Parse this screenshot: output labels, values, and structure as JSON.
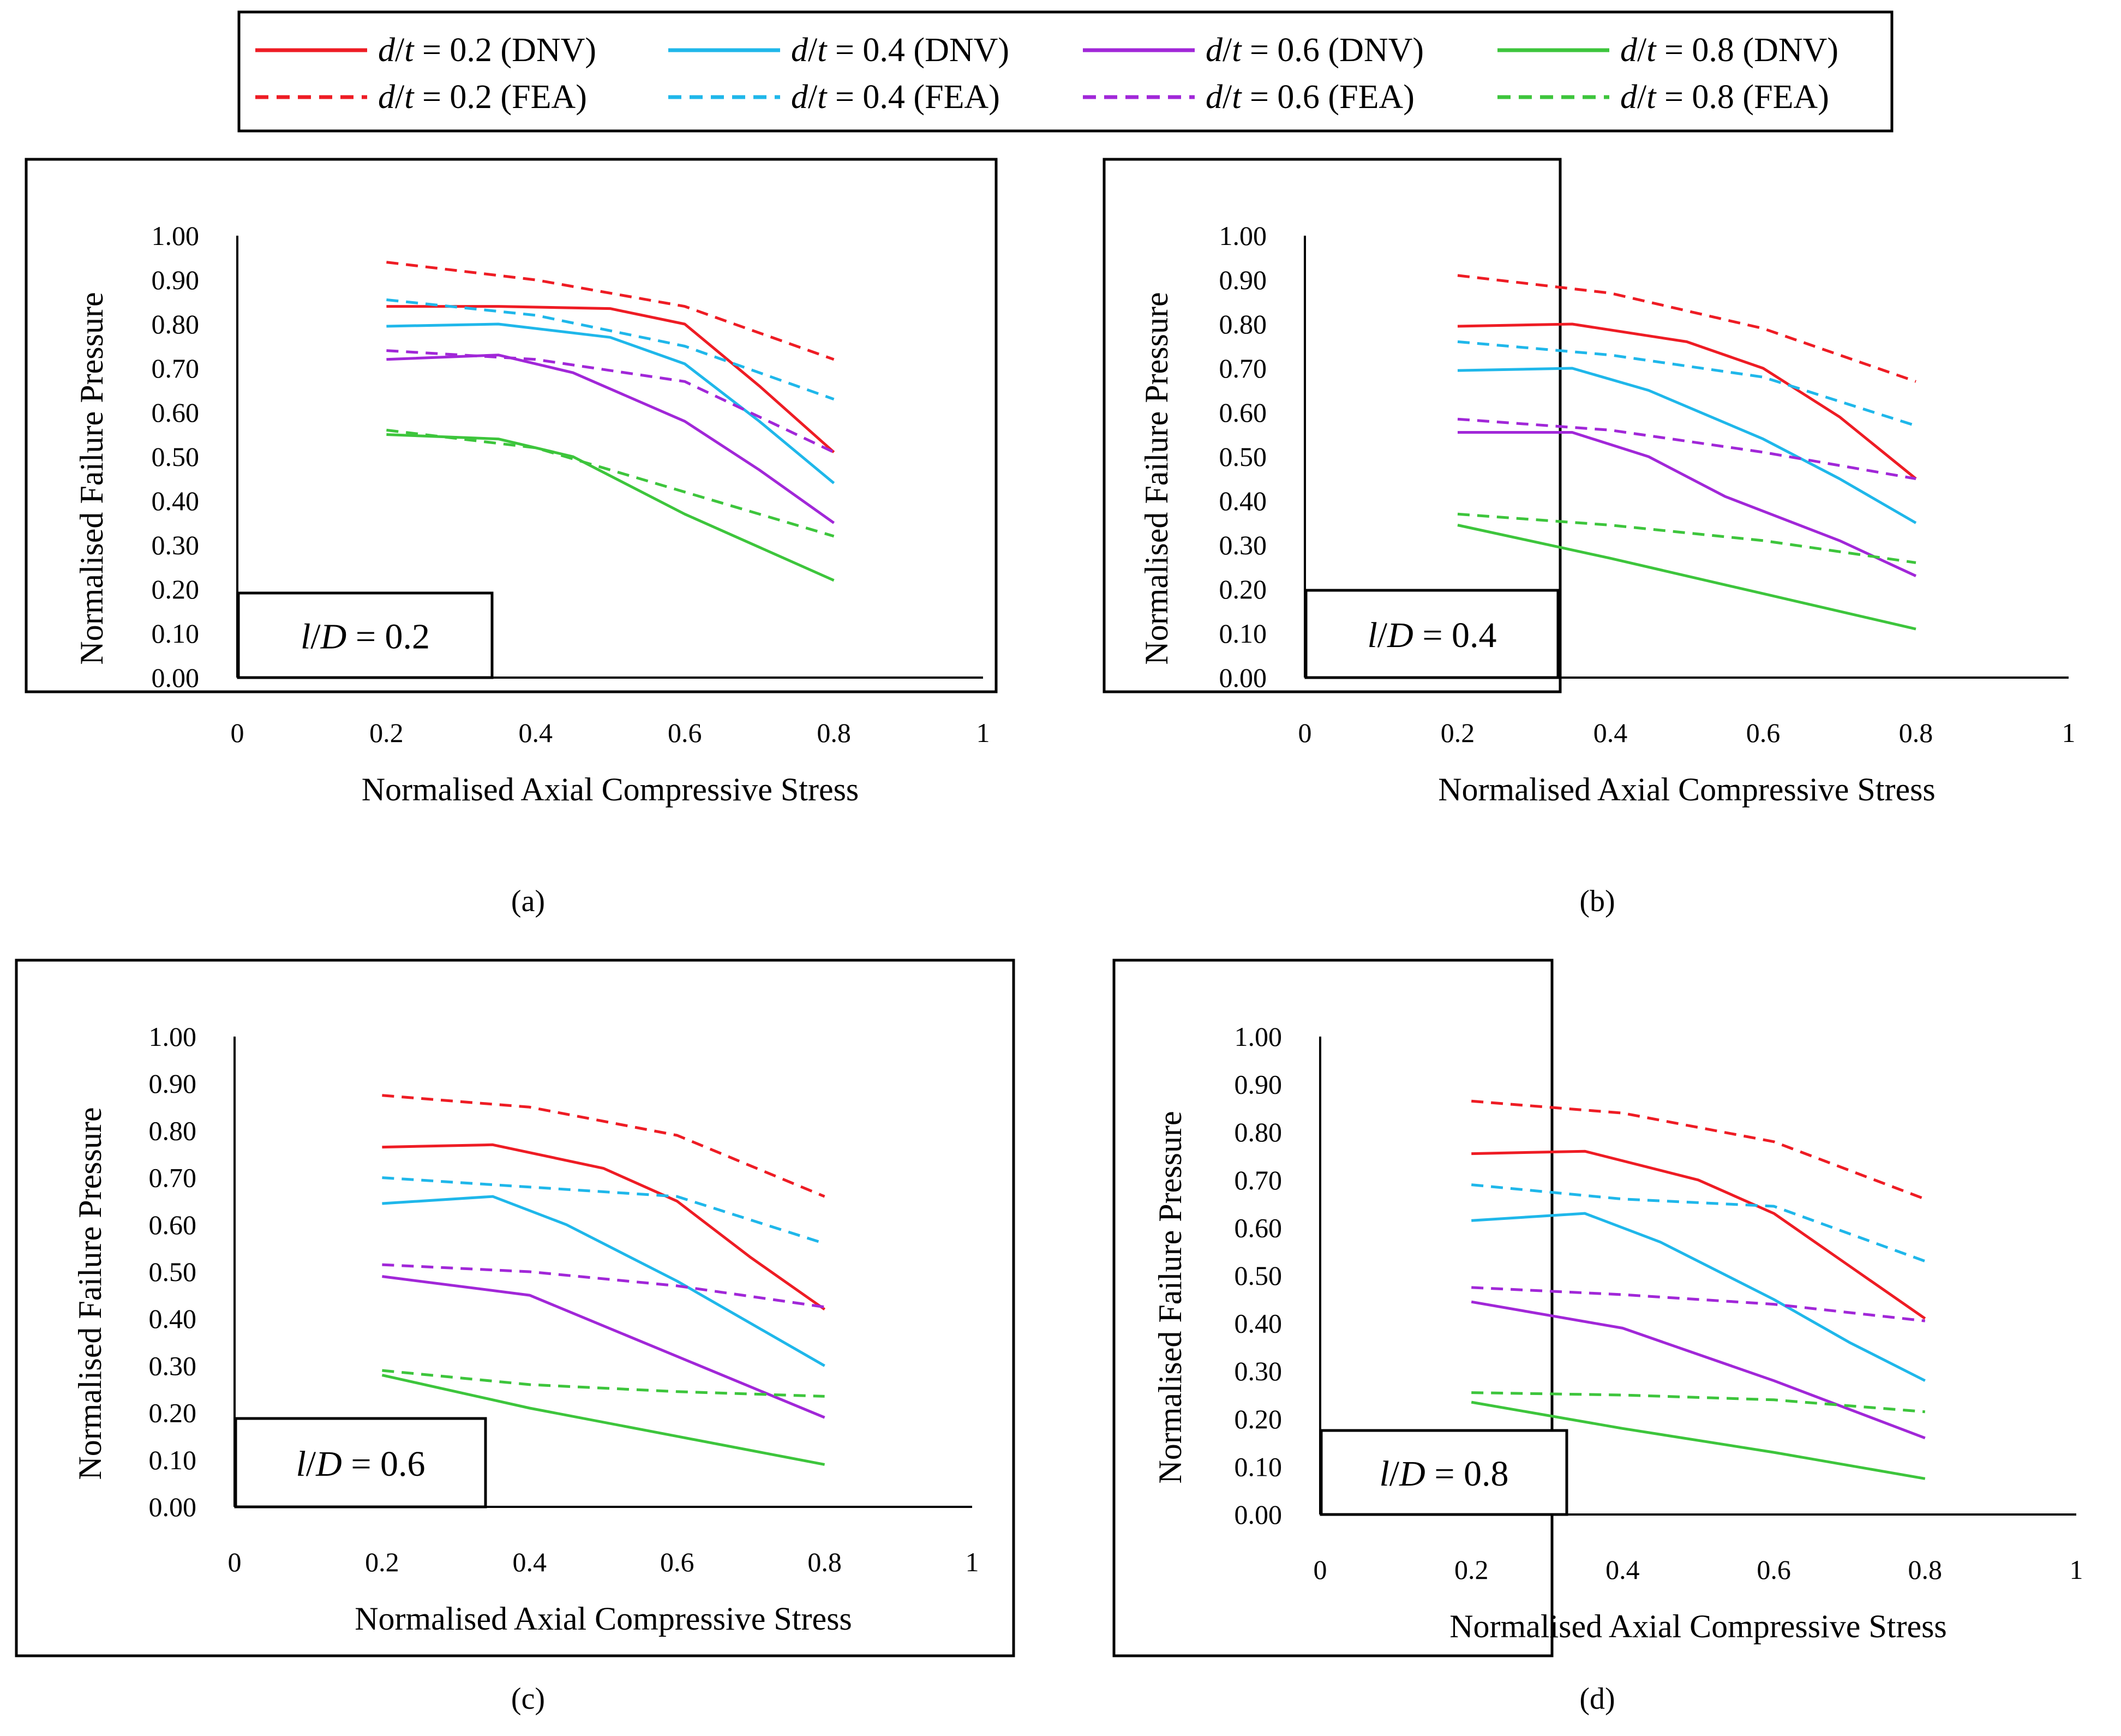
{
  "colors": {
    "red": "#ee1c24",
    "blue": "#1fb7ea",
    "purple": "#a127d8",
    "green": "#3dc53c"
  },
  "legend": {
    "var": "d/t",
    "items": [
      {
        "val": "0.2",
        "method": "(DNV)",
        "color": "#ee1c24",
        "dash": false
      },
      {
        "val": "0.4",
        "method": "(DNV)",
        "color": "#1fb7ea",
        "dash": false
      },
      {
        "val": "0.6",
        "method": "(DNV)",
        "color": "#a127d8",
        "dash": false
      },
      {
        "val": "0.8",
        "method": "(DNV)",
        "color": "#3dc53c",
        "dash": false
      },
      {
        "val": "0.2",
        "method": "(FEA)",
        "color": "#ee1c24",
        "dash": true
      },
      {
        "val": "0.4",
        "method": "(FEA)",
        "color": "#1fb7ea",
        "dash": true
      },
      {
        "val": "0.6",
        "method": "(FEA)",
        "color": "#a127d8",
        "dash": true
      },
      {
        "val": "0.8",
        "method": "(FEA)",
        "color": "#3dc53c",
        "dash": true
      }
    ]
  },
  "chart_data": [
    {
      "type": "line",
      "panel": "(a)",
      "box_var": "l/D",
      "box_value": "0.2",
      "xlabel": "Normalised Axial Compressive Stress",
      "ylabel": "Normalised Failure Pressure",
      "xlim": [
        0,
        1
      ],
      "ylim": [
        0,
        1
      ],
      "xticks": [
        "0",
        "0.2",
        "0.4",
        "0.6",
        "0.8",
        "1"
      ],
      "yticks": [
        "0.00",
        "0.10",
        "0.20",
        "0.30",
        "0.40",
        "0.50",
        "0.60",
        "0.70",
        "0.80",
        "0.90",
        "1.00"
      ],
      "series": [
        {
          "name": "d/t = 0.2 (DNV)",
          "color": "#ee1c24",
          "dash": false,
          "x": [
            0.2,
            0.35,
            0.5,
            0.6,
            0.7,
            0.8
          ],
          "y": [
            0.84,
            0.84,
            0.835,
            0.8,
            0.66,
            0.51
          ]
        },
        {
          "name": "d/t = 0.4 (DNV)",
          "color": "#1fb7ea",
          "dash": false,
          "x": [
            0.2,
            0.35,
            0.5,
            0.6,
            0.7,
            0.8
          ],
          "y": [
            0.795,
            0.8,
            0.77,
            0.71,
            0.58,
            0.44
          ]
        },
        {
          "name": "d/t = 0.6 (DNV)",
          "color": "#a127d8",
          "dash": false,
          "x": [
            0.2,
            0.35,
            0.45,
            0.6,
            0.7,
            0.8
          ],
          "y": [
            0.72,
            0.73,
            0.69,
            0.58,
            0.47,
            0.35
          ]
        },
        {
          "name": "d/t = 0.8 (DNV)",
          "color": "#3dc53c",
          "dash": false,
          "x": [
            0.2,
            0.35,
            0.45,
            0.6,
            0.8
          ],
          "y": [
            0.55,
            0.54,
            0.5,
            0.37,
            0.22
          ]
        },
        {
          "name": "d/t = 0.2 (FEA)",
          "color": "#ee1c24",
          "dash": true,
          "x": [
            0.2,
            0.4,
            0.6,
            0.8
          ],
          "y": [
            0.94,
            0.9,
            0.84,
            0.72
          ]
        },
        {
          "name": "d/t = 0.4 (FEA)",
          "color": "#1fb7ea",
          "dash": true,
          "x": [
            0.2,
            0.4,
            0.6,
            0.8
          ],
          "y": [
            0.855,
            0.82,
            0.75,
            0.63
          ]
        },
        {
          "name": "d/t = 0.6 (FEA)",
          "color": "#a127d8",
          "dash": true,
          "x": [
            0.2,
            0.4,
            0.6,
            0.8
          ],
          "y": [
            0.74,
            0.72,
            0.67,
            0.51
          ]
        },
        {
          "name": "d/t = 0.8 (FEA)",
          "color": "#3dc53c",
          "dash": true,
          "x": [
            0.2,
            0.4,
            0.6,
            0.8
          ],
          "y": [
            0.56,
            0.52,
            0.42,
            0.32
          ]
        }
      ]
    },
    {
      "type": "line",
      "panel": "(b)",
      "box_var": "l/D",
      "box_value": "0.4",
      "xlabel": "Normalised Axial Compressive Stress",
      "ylabel": "Normalised Failure Pressure",
      "xlim": [
        0,
        1
      ],
      "ylim": [
        0,
        1
      ],
      "xticks": [
        "0",
        "0.2",
        "0.4",
        "0.6",
        "0.8",
        "1"
      ],
      "yticks": [
        "0.00",
        "0.10",
        "0.20",
        "0.30",
        "0.40",
        "0.50",
        "0.60",
        "0.70",
        "0.80",
        "0.90",
        "1.00"
      ],
      "series": [
        {
          "name": "d/t = 0.2 (DNV)",
          "color": "#ee1c24",
          "dash": false,
          "x": [
            0.2,
            0.35,
            0.5,
            0.6,
            0.7,
            0.8
          ],
          "y": [
            0.795,
            0.8,
            0.76,
            0.7,
            0.59,
            0.45
          ]
        },
        {
          "name": "d/t = 0.4 (DNV)",
          "color": "#1fb7ea",
          "dash": false,
          "x": [
            0.2,
            0.35,
            0.45,
            0.6,
            0.7,
            0.8
          ],
          "y": [
            0.695,
            0.7,
            0.65,
            0.54,
            0.45,
            0.35
          ]
        },
        {
          "name": "d/t = 0.6 (DNV)",
          "color": "#a127d8",
          "dash": false,
          "x": [
            0.2,
            0.35,
            0.45,
            0.55,
            0.7,
            0.8
          ],
          "y": [
            0.555,
            0.555,
            0.5,
            0.41,
            0.31,
            0.23
          ]
        },
        {
          "name": "d/t = 0.8 (DNV)",
          "color": "#3dc53c",
          "dash": false,
          "x": [
            0.2,
            0.4,
            0.6,
            0.8
          ],
          "y": [
            0.345,
            0.27,
            0.19,
            0.11
          ]
        },
        {
          "name": "d/t = 0.2 (FEA)",
          "color": "#ee1c24",
          "dash": true,
          "x": [
            0.2,
            0.4,
            0.6,
            0.8
          ],
          "y": [
            0.91,
            0.87,
            0.79,
            0.67
          ]
        },
        {
          "name": "d/t = 0.4 (FEA)",
          "color": "#1fb7ea",
          "dash": true,
          "x": [
            0.2,
            0.4,
            0.6,
            0.8
          ],
          "y": [
            0.76,
            0.73,
            0.68,
            0.57
          ]
        },
        {
          "name": "d/t = 0.6 (FEA)",
          "color": "#a127d8",
          "dash": true,
          "x": [
            0.2,
            0.4,
            0.6,
            0.8
          ],
          "y": [
            0.585,
            0.56,
            0.51,
            0.45
          ]
        },
        {
          "name": "d/t = 0.8 (FEA)",
          "color": "#3dc53c",
          "dash": true,
          "x": [
            0.2,
            0.4,
            0.6,
            0.8
          ],
          "y": [
            0.37,
            0.345,
            0.31,
            0.26
          ]
        }
      ]
    },
    {
      "type": "line",
      "panel": "(c)",
      "box_var": "l/D",
      "box_value": "0.6",
      "xlabel": "Normalised Axial Compressive Stress",
      "ylabel": "Normalised Failure Pressure",
      "xlim": [
        0,
        1
      ],
      "ylim": [
        0,
        1
      ],
      "xticks": [
        "0",
        "0.2",
        "0.4",
        "0.6",
        "0.8",
        "1"
      ],
      "yticks": [
        "0.00",
        "0.10",
        "0.20",
        "0.30",
        "0.40",
        "0.50",
        "0.60",
        "0.70",
        "0.80",
        "0.90",
        "1.00"
      ],
      "series": [
        {
          "name": "d/t = 0.2 (DNV)",
          "color": "#ee1c24",
          "dash": false,
          "x": [
            0.2,
            0.35,
            0.5,
            0.6,
            0.7,
            0.8
          ],
          "y": [
            0.765,
            0.77,
            0.72,
            0.65,
            0.53,
            0.42
          ]
        },
        {
          "name": "d/t = 0.4 (DNV)",
          "color": "#1fb7ea",
          "dash": false,
          "x": [
            0.2,
            0.35,
            0.45,
            0.6,
            0.7,
            0.8
          ],
          "y": [
            0.645,
            0.66,
            0.6,
            0.48,
            0.39,
            0.3
          ]
        },
        {
          "name": "d/t = 0.6 (DNV)",
          "color": "#a127d8",
          "dash": false,
          "x": [
            0.2,
            0.4,
            0.6,
            0.8
          ],
          "y": [
            0.49,
            0.45,
            0.32,
            0.19
          ]
        },
        {
          "name": "d/t = 0.8 (DNV)",
          "color": "#3dc53c",
          "dash": false,
          "x": [
            0.2,
            0.4,
            0.6,
            0.8
          ],
          "y": [
            0.28,
            0.21,
            0.15,
            0.09
          ]
        },
        {
          "name": "d/t = 0.2 (FEA)",
          "color": "#ee1c24",
          "dash": true,
          "x": [
            0.2,
            0.4,
            0.6,
            0.8
          ],
          "y": [
            0.875,
            0.85,
            0.79,
            0.66
          ]
        },
        {
          "name": "d/t = 0.4 (FEA)",
          "color": "#1fb7ea",
          "dash": true,
          "x": [
            0.2,
            0.4,
            0.6,
            0.8
          ],
          "y": [
            0.7,
            0.68,
            0.66,
            0.56
          ]
        },
        {
          "name": "d/t = 0.6 (FEA)",
          "color": "#a127d8",
          "dash": true,
          "x": [
            0.2,
            0.4,
            0.6,
            0.8
          ],
          "y": [
            0.515,
            0.5,
            0.47,
            0.425
          ]
        },
        {
          "name": "d/t = 0.8 (FEA)",
          "color": "#3dc53c",
          "dash": true,
          "x": [
            0.2,
            0.4,
            0.6,
            0.8
          ],
          "y": [
            0.29,
            0.26,
            0.245,
            0.235
          ]
        }
      ]
    },
    {
      "type": "line",
      "panel": "(d)",
      "box_var": "l/D",
      "box_value": "0.8",
      "xlabel": "Normalised Axial Compressive Stress",
      "ylabel": "Normalised Failure Pressure",
      "xlim": [
        0,
        1
      ],
      "ylim": [
        0,
        1
      ],
      "xticks": [
        "0",
        "0.2",
        "0.4",
        "0.6",
        "0.8",
        "1"
      ],
      "yticks": [
        "0.00",
        "0.10",
        "0.20",
        "0.30",
        "0.40",
        "0.50",
        "0.60",
        "0.70",
        "0.80",
        "0.90",
        "1.00"
      ],
      "series": [
        {
          "name": "d/t = 0.2 (DNV)",
          "color": "#ee1c24",
          "dash": false,
          "x": [
            0.2,
            0.35,
            0.5,
            0.6,
            0.7,
            0.8
          ],
          "y": [
            0.755,
            0.76,
            0.7,
            0.63,
            0.52,
            0.41
          ]
        },
        {
          "name": "d/t = 0.4 (DNV)",
          "color": "#1fb7ea",
          "dash": false,
          "x": [
            0.2,
            0.35,
            0.45,
            0.6,
            0.7,
            0.8
          ],
          "y": [
            0.615,
            0.63,
            0.57,
            0.45,
            0.36,
            0.28
          ]
        },
        {
          "name": "d/t = 0.6 (DNV)",
          "color": "#a127d8",
          "dash": false,
          "x": [
            0.2,
            0.4,
            0.6,
            0.8
          ],
          "y": [
            0.445,
            0.39,
            0.28,
            0.16
          ]
        },
        {
          "name": "d/t = 0.8 (DNV)",
          "color": "#3dc53c",
          "dash": false,
          "x": [
            0.2,
            0.4,
            0.6,
            0.8
          ],
          "y": [
            0.235,
            0.18,
            0.13,
            0.075
          ]
        },
        {
          "name": "d/t = 0.2 (FEA)",
          "color": "#ee1c24",
          "dash": true,
          "x": [
            0.2,
            0.4,
            0.6,
            0.8
          ],
          "y": [
            0.865,
            0.84,
            0.78,
            0.66
          ]
        },
        {
          "name": "d/t = 0.4 (FEA)",
          "color": "#1fb7ea",
          "dash": true,
          "x": [
            0.2,
            0.4,
            0.6,
            0.8
          ],
          "y": [
            0.69,
            0.66,
            0.645,
            0.53
          ]
        },
        {
          "name": "d/t = 0.6 (FEA)",
          "color": "#a127d8",
          "dash": true,
          "x": [
            0.2,
            0.4,
            0.6,
            0.8
          ],
          "y": [
            0.475,
            0.46,
            0.44,
            0.405
          ]
        },
        {
          "name": "d/t = 0.8 (FEA)",
          "color": "#3dc53c",
          "dash": true,
          "x": [
            0.2,
            0.4,
            0.6,
            0.8
          ],
          "y": [
            0.255,
            0.25,
            0.24,
            0.215
          ]
        }
      ]
    }
  ]
}
